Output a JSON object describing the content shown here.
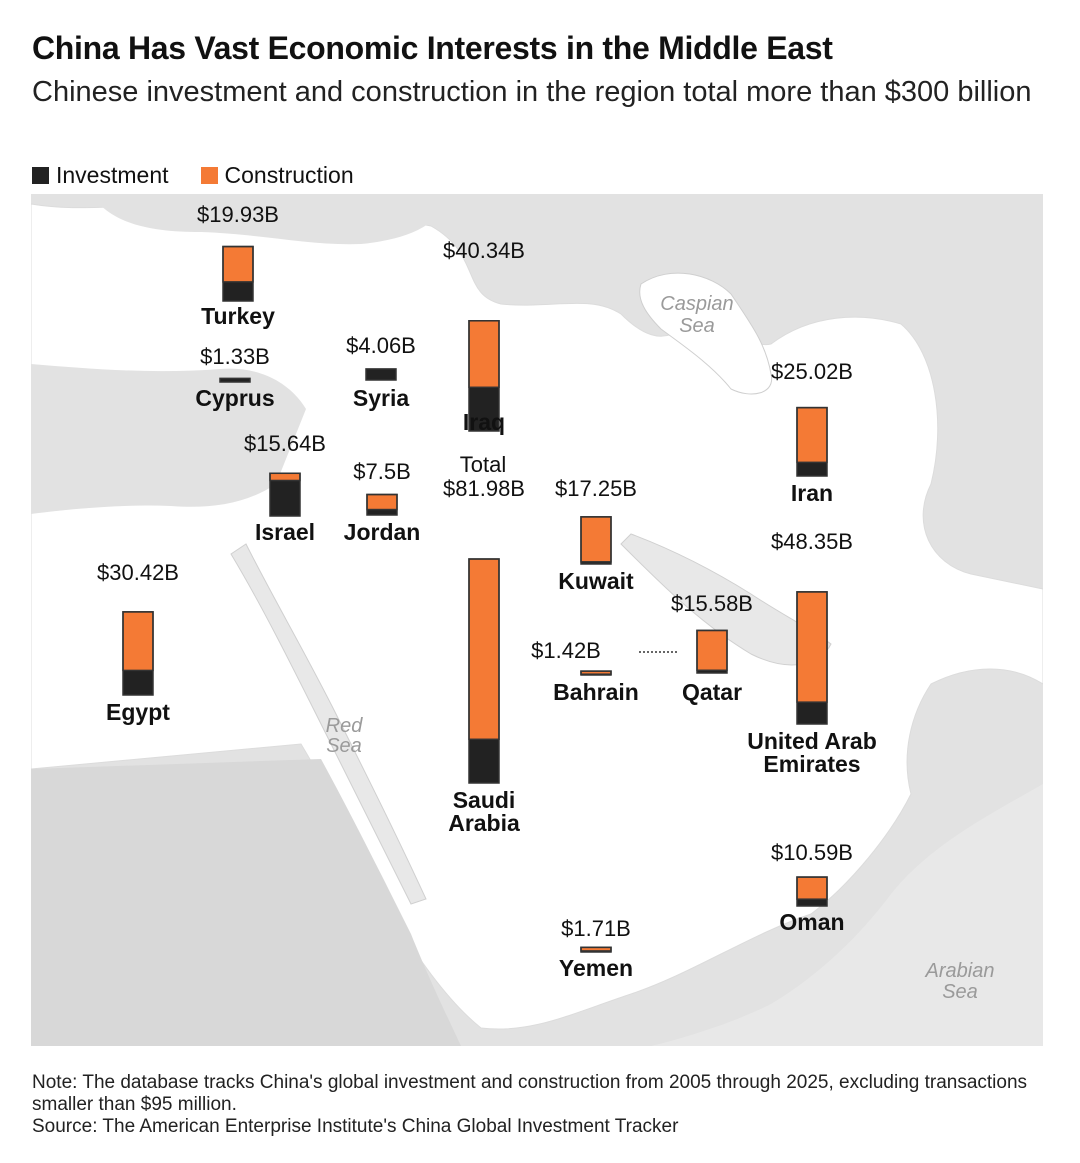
{
  "title": "China Has Vast Economic Interests in the Middle East",
  "subtitle": "Chinese investment and construction in the region total more than $300 billion",
  "legend": [
    {
      "label": "Investment",
      "color": "#222222"
    },
    {
      "label": "Construction",
      "color": "#f47a35"
    }
  ],
  "seas": {
    "caspian": [
      "Caspian",
      "Sea"
    ],
    "red": [
      "Red",
      "Sea"
    ],
    "arabian": [
      "Arabian",
      "Sea"
    ]
  },
  "total_label": "Total",
  "chart_data": {
    "type": "bar",
    "stacked": true,
    "series_names": [
      "Investment",
      "Construction"
    ],
    "countries": [
      {
        "name": "Turkey",
        "total": "$19.93B",
        "investment": 7.0,
        "construction": 12.93
      },
      {
        "name": "Cyprus",
        "total": "$1.33B",
        "investment": 1.33,
        "construction": 0
      },
      {
        "name": "Syria",
        "total": "$4.06B",
        "investment": 4.06,
        "construction": 0
      },
      {
        "name": "Iraq",
        "total": "$40.34B",
        "investment": 16.0,
        "construction": 24.34
      },
      {
        "name": "Iran",
        "total": "$25.02B",
        "investment": 5.0,
        "construction": 20.02
      },
      {
        "name": "Israel",
        "total": "$15.64B",
        "investment": 13.0,
        "construction": 2.64
      },
      {
        "name": "Jordan",
        "total": "$7.5B",
        "investment": 2.0,
        "construction": 5.5
      },
      {
        "name": "Saudi Arabia",
        "total": "$81.98B",
        "investment": 16.0,
        "construction": 65.98
      },
      {
        "name": "Kuwait",
        "total": "$17.25B",
        "investment": 0.8,
        "construction": 16.45
      },
      {
        "name": "Egypt",
        "total": "$30.42B",
        "investment": 9.0,
        "construction": 21.42
      },
      {
        "name": "United Arab Emirates",
        "total": "$48.35B",
        "investment": 8.0,
        "construction": 40.35
      },
      {
        "name": "Qatar",
        "total": "$15.58B",
        "investment": 1.0,
        "construction": 14.58
      },
      {
        "name": "Bahrain",
        "total": "$1.42B",
        "investment": 0.3,
        "construction": 1.12
      },
      {
        "name": "Oman",
        "total": "$10.59B",
        "investment": 2.5,
        "construction": 8.09
      },
      {
        "name": "Yemen",
        "total": "$1.71B",
        "investment": 0.4,
        "construction": 1.31
      }
    ]
  },
  "note": "Note: The database tracks China's global investment and construction from 2005 through 2025, excluding transactions smaller than $95 million.",
  "source": "Source: The American Enterprise Institute's China Global Investment Tracker"
}
